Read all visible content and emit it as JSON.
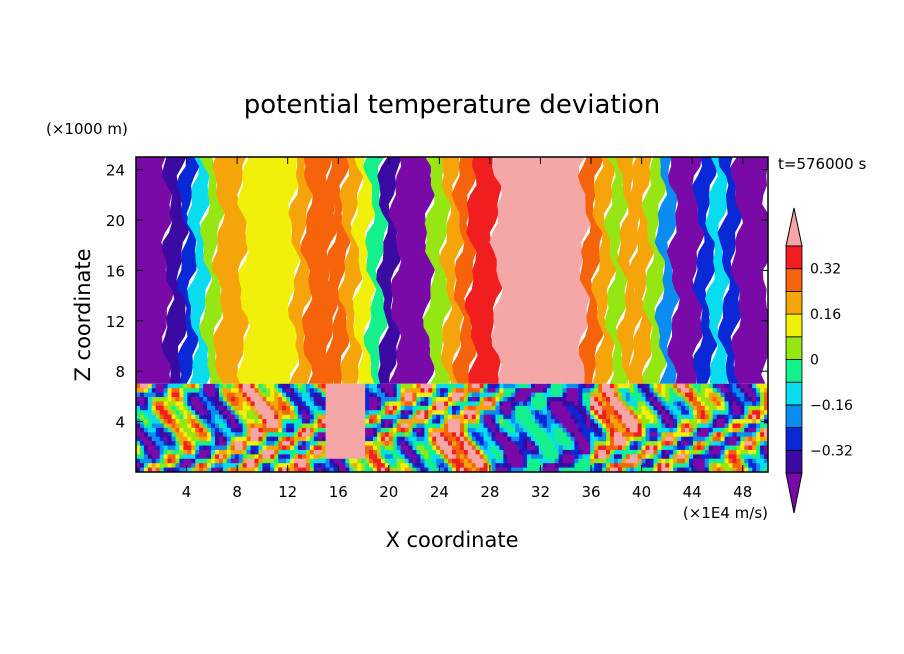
{
  "chart_data": {
    "type": "heatmap",
    "title": "potential temperature deviation",
    "xlabel": "X coordinate",
    "ylabel": "Z coordinate",
    "x_units": "(×1E4 m/s)",
    "y_units": "(×1000 m)",
    "time_label": "t=576000 s",
    "xlim": [
      0,
      50
    ],
    "ylim": [
      0,
      25
    ],
    "x_ticks": [
      4,
      8,
      12,
      16,
      20,
      24,
      28,
      32,
      36,
      40,
      44,
      48
    ],
    "y_ticks": [
      4,
      8,
      12,
      16,
      20,
      24
    ],
    "inversion_height": 7,
    "colorbar": {
      "labels": [
        "0.32",
        "0.16",
        "0",
        "−0.16",
        "−0.32"
      ],
      "label_values": [
        0.32,
        0.16,
        0,
        -0.16,
        -0.32
      ],
      "levels": [
        -0.4,
        -0.32,
        -0.24,
        -0.16,
        -0.08,
        0,
        0.08,
        0.16,
        0.24,
        0.32,
        0.4
      ],
      "colors": [
        "#7a0aa8",
        "#3a0aa3",
        "#0a28d6",
        "#0a8cf0",
        "#0adcf0",
        "#14f08c",
        "#96e614",
        "#f0f00a",
        "#f5a50a",
        "#f5640a",
        "#f01e1e",
        "#f5a6a6"
      ],
      "extend": "both"
    },
    "upper_layer_columns": [
      {
        "x": [
          0,
          2.5
        ],
        "value": -0.45
      },
      {
        "x": [
          2.5,
          3.7
        ],
        "value": -0.36
      },
      {
        "x": [
          3.7,
          4.5
        ],
        "value": -0.28
      },
      {
        "x": [
          4.5,
          5.5
        ],
        "value": -0.12
      },
      {
        "x": [
          5.5,
          6.5
        ],
        "value": 0.02
      },
      {
        "x": [
          6.5,
          8.5
        ],
        "value": 0.18
      },
      {
        "x": [
          8.5,
          12.5
        ],
        "value": 0.1
      },
      {
        "x": [
          12.5,
          13.5
        ],
        "value": 0.2
      },
      {
        "x": [
          13.5,
          15.5
        ],
        "value": 0.3
      },
      {
        "x": [
          15.5,
          16.5
        ],
        "value": 0.26
      },
      {
        "x": [
          16.5,
          17.5
        ],
        "value": 0.18
      },
      {
        "x": [
          17.5,
          18.5
        ],
        "value": 0.1
      },
      {
        "x": [
          18.5,
          19.5
        ],
        "value": -0.04
      },
      {
        "x": [
          19.5,
          20.5
        ],
        "value": -0.36
      },
      {
        "x": [
          20.5,
          23.2
        ],
        "value": -0.45
      },
      {
        "x": [
          23.2,
          24.5
        ],
        "value": 0.05
      },
      {
        "x": [
          24.5,
          25.5
        ],
        "value": 0.18
      },
      {
        "x": [
          25.5,
          26.5
        ],
        "value": 0.28
      },
      {
        "x": [
          26.5,
          28.5
        ],
        "value": 0.36
      },
      {
        "x": [
          28.5,
          35.5
        ],
        "value": 0.45
      },
      {
        "x": [
          35.5,
          36.5
        ],
        "value": 0.3
      },
      {
        "x": [
          36.5,
          37.5
        ],
        "value": 0.18
      },
      {
        "x": [
          37.5,
          38.5
        ],
        "value": 0.04
      },
      {
        "x": [
          38.5,
          39.5
        ],
        "value": 0.16
      },
      {
        "x": [
          39.5,
          40.5
        ],
        "value": 0.22
      },
      {
        "x": [
          40.5,
          41.5
        ],
        "value": 0.06
      },
      {
        "x": [
          41.5,
          42.5
        ],
        "value": -0.18
      },
      {
        "x": [
          42.5,
          44.5
        ],
        "value": -0.45
      },
      {
        "x": [
          44.5,
          45.5
        ],
        "value": -0.28
      },
      {
        "x": [
          45.5,
          46.5
        ],
        "value": -0.1
      },
      {
        "x": [
          46.5,
          47.5
        ],
        "value": -0.28
      },
      {
        "x": [
          47.5,
          50
        ],
        "value": -0.45
      }
    ]
  }
}
